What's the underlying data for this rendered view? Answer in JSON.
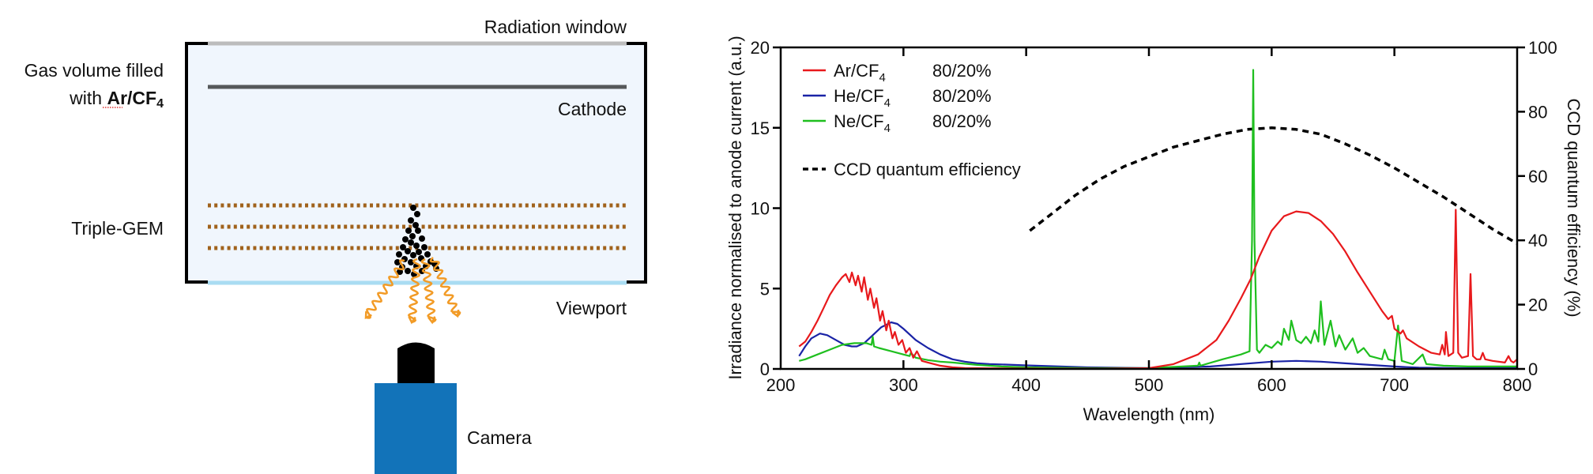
{
  "diagram": {
    "labels": {
      "radiation_window": "Radiation window",
      "gas_volume_line1": "Gas volume filled",
      "gas_volume_line2_prefix": "with ",
      "gas_volume_line2_gas": "Ar/CF",
      "gas_volume_line2_sub": "4",
      "cathode": "Cathode",
      "triple_gem": "Triple-GEM",
      "viewport": "Viewport",
      "camera": "Camera"
    },
    "colors": {
      "chamber_fill": "#f0f6fd",
      "chamber_wall": "#000000",
      "radiation_window": "#bcbcbc",
      "cathode": "#55585a",
      "gem": "#a0621c",
      "viewport": "#a9dcf2",
      "electrons": "#000000",
      "photons": "#f29b26",
      "camera_body": "#1273b9",
      "camera_lens": "#000000"
    }
  },
  "chart_data": {
    "type": "line",
    "title": "",
    "xlabel": "Wavelength (nm)",
    "ylabel": "Irradiance normalised to anode current (a.u.)",
    "y2label": "CCD quantum efficiency (%)",
    "xlim": [
      200,
      800
    ],
    "ylim": [
      0,
      20
    ],
    "y2lim": [
      0,
      100
    ],
    "xticks": [
      200,
      300,
      400,
      500,
      600,
      700,
      800
    ],
    "yticks": [
      0,
      5,
      10,
      15,
      20
    ],
    "y2ticks": [
      0,
      20,
      40,
      60,
      80,
      100
    ],
    "grid": false,
    "legend_position": "top-left",
    "legend": [
      {
        "name": "Ar/CF",
        "sub": "4",
        "ratio": "80/20%",
        "color": "#e8191c",
        "style": "solid"
      },
      {
        "name": "He/CF",
        "sub": "4",
        "ratio": "80/20%",
        "color": "#1a23a6",
        "style": "solid"
      },
      {
        "name": "Ne/CF",
        "sub": "4",
        "ratio": "80/20%",
        "color": "#1fbf1f",
        "style": "solid"
      },
      {
        "name": "CCD quantum efficiency",
        "sub": "",
        "ratio": "",
        "color": "#000000",
        "style": "dashed"
      }
    ],
    "series": [
      {
        "name": "Ar/CF4 80/20%",
        "axis": "left",
        "color": "#e8191c",
        "x": [
          215,
          220,
          225,
          230,
          235,
          240,
          245,
          250,
          253,
          256,
          258,
          261,
          263,
          266,
          268,
          271,
          273,
          276,
          278,
          281,
          283,
          286,
          288,
          291,
          293,
          296,
          299,
          302,
          305,
          308,
          311,
          315,
          320,
          325,
          330,
          340,
          350,
          380,
          420,
          460,
          500,
          520,
          540,
          555,
          565,
          575,
          583,
          590,
          600,
          610,
          620,
          630,
          640,
          650,
          660,
          670,
          680,
          690,
          695,
          698,
          700,
          705,
          707,
          710,
          720,
          730,
          737,
          739,
          741,
          742,
          744,
          748,
          750,
          752,
          755,
          760,
          762,
          764,
          767,
          770,
          772,
          774,
          780,
          790,
          793,
          795,
          797,
          800
        ],
        "y": [
          1.4,
          1.7,
          2.3,
          3.0,
          3.8,
          4.6,
          5.2,
          5.7,
          5.9,
          5.4,
          6.0,
          5.2,
          5.8,
          4.8,
          5.7,
          4.3,
          5.0,
          3.8,
          4.4,
          3.0,
          3.6,
          2.4,
          3.0,
          1.9,
          2.3,
          1.5,
          1.8,
          1.0,
          1.3,
          0.7,
          1.1,
          0.5,
          0.4,
          0.3,
          0.2,
          0.1,
          0.05,
          0.03,
          0.02,
          0.02,
          0.05,
          0.3,
          0.9,
          1.8,
          3.0,
          4.4,
          5.6,
          7.0,
          8.6,
          9.5,
          9.8,
          9.7,
          9.2,
          8.4,
          7.3,
          6.0,
          4.8,
          3.6,
          3.1,
          3.3,
          2.5,
          2.2,
          2.4,
          1.9,
          1.4,
          1.0,
          0.9,
          1.5,
          0.9,
          2.3,
          0.8,
          1.0,
          9.9,
          1.0,
          0.7,
          0.8,
          5.9,
          0.8,
          0.6,
          0.6,
          1.0,
          0.6,
          0.5,
          0.4,
          0.8,
          0.5,
          0.4,
          0.6
        ]
      },
      {
        "name": "He/CF4 80/20%",
        "axis": "left",
        "color": "#1a23a6",
        "x": [
          215,
          220,
          225,
          232,
          238,
          245,
          252,
          258,
          262,
          268,
          275,
          282,
          290,
          295,
          300,
          310,
          320,
          330,
          340,
          350,
          360,
          370,
          380,
          400,
          450,
          500,
          550,
          600,
          620,
          640,
          660,
          680,
          700,
          720,
          750,
          800
        ],
        "y": [
          0.8,
          1.4,
          1.9,
          2.2,
          2.1,
          1.8,
          1.5,
          1.4,
          1.4,
          1.6,
          2.1,
          2.6,
          2.9,
          2.8,
          2.5,
          1.8,
          1.3,
          0.9,
          0.6,
          0.45,
          0.35,
          0.3,
          0.28,
          0.22,
          0.1,
          0.05,
          0.15,
          0.45,
          0.5,
          0.45,
          0.35,
          0.25,
          0.15,
          0.08,
          0.05,
          0.05
        ]
      },
      {
        "name": "Ne/CF4 80/20%",
        "axis": "left",
        "color": "#1fbf1f",
        "x": [
          215,
          220,
          230,
          240,
          250,
          260,
          270,
          274,
          275,
          276,
          280,
          290,
          300,
          305,
          306,
          310,
          320,
          330,
          340,
          360,
          380,
          400,
          450,
          500,
          540,
          541,
          542,
          560,
          575,
          582,
          584,
          585,
          586,
          588,
          590,
          595,
          600,
          605,
          608,
          610,
          614,
          616,
          620,
          624,
          628,
          632,
          635,
          638,
          640,
          643,
          648,
          652,
          655,
          660,
          666,
          670,
          675,
          680,
          690,
          692,
          695,
          700,
          703,
          706,
          715,
          723,
          726,
          740,
          760,
          780,
          800
        ],
        "y": [
          0.5,
          0.6,
          0.9,
          1.2,
          1.5,
          1.6,
          1.6,
          1.5,
          2.0,
          1.4,
          1.3,
          1.1,
          0.9,
          0.8,
          1.0,
          0.7,
          0.55,
          0.45,
          0.4,
          0.25,
          0.15,
          0.1,
          0.05,
          0.05,
          0.2,
          0.4,
          0.2,
          0.6,
          0.9,
          1.1,
          8.0,
          18.6,
          8.0,
          1.2,
          1.0,
          1.5,
          1.3,
          1.7,
          1.5,
          2.5,
          1.8,
          3.0,
          1.8,
          1.6,
          2.0,
          1.6,
          2.4,
          1.7,
          4.2,
          1.5,
          3.0,
          1.4,
          2.1,
          1.2,
          1.9,
          1.0,
          1.3,
          0.8,
          0.6,
          1.2,
          0.6,
          0.5,
          2.7,
          0.5,
          0.3,
          0.9,
          0.3,
          0.2,
          0.15,
          0.15,
          0.15
        ]
      },
      {
        "name": "CCD quantum efficiency",
        "axis": "right",
        "color": "#000000",
        "dashed": true,
        "x": [
          403,
          420,
          440,
          460,
          480,
          500,
          520,
          540,
          560,
          580,
          600,
          620,
          640,
          660,
          680,
          700,
          720,
          740,
          760,
          780,
          800
        ],
        "y": [
          43,
          48,
          54,
          59,
          63,
          66,
          69,
          71,
          73,
          74.5,
          75,
          74.5,
          73,
          70,
          66.5,
          62.5,
          58,
          53.5,
          48.5,
          43.5,
          39
        ]
      }
    ]
  }
}
